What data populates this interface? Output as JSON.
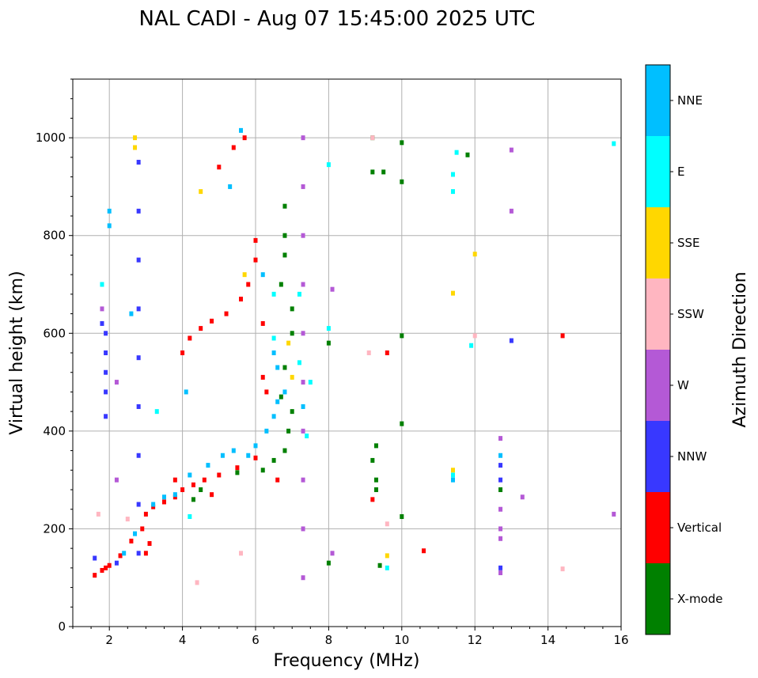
{
  "chart_data": {
    "type": "scatter",
    "title": "NAL CADI - Aug 07 15:45:00 2025 UTC",
    "xlabel": "Frequency (MHz)",
    "ylabel": "Virtual height (km)",
    "xlim": [
      1,
      16
    ],
    "ylim": [
      0,
      1120
    ],
    "xticks": [
      2,
      4,
      6,
      8,
      10,
      12,
      14,
      16
    ],
    "yticks": [
      0,
      200,
      400,
      600,
      800,
      1000
    ],
    "grid": true,
    "colorbar": {
      "title": "Azimuth Direction",
      "categories": [
        {
          "name": "X-mode",
          "color": "#008000"
        },
        {
          "name": "Vertical",
          "color": "#ff0000"
        },
        {
          "name": "NNW",
          "color": "#3838ff"
        },
        {
          "name": "W",
          "color": "#b459d6"
        },
        {
          "name": "SSW",
          "color": "#ffb6c1"
        },
        {
          "name": "SSE",
          "color": "#ffd700"
        },
        {
          "name": "E",
          "color": "#00ffff"
        },
        {
          "name": "NNE",
          "color": "#00bfff"
        }
      ]
    },
    "series": [
      {
        "name": "Vertical",
        "points": [
          [
            1.6,
            105
          ],
          [
            1.8,
            115
          ],
          [
            2.0,
            125
          ],
          [
            2.3,
            145
          ],
          [
            2.6,
            175
          ],
          [
            2.9,
            200
          ],
          [
            3.0,
            230
          ],
          [
            3.2,
            245
          ],
          [
            3.5,
            255
          ],
          [
            3.8,
            265
          ],
          [
            4.0,
            280
          ],
          [
            4.3,
            290
          ],
          [
            4.6,
            300
          ],
          [
            5.0,
            310
          ],
          [
            5.5,
            325
          ],
          [
            6.0,
            345
          ],
          [
            3.0,
            150
          ],
          [
            3.1,
            170
          ],
          [
            4.0,
            560
          ],
          [
            4.2,
            590
          ],
          [
            4.5,
            610
          ],
          [
            4.8,
            625
          ],
          [
            5.2,
            640
          ],
          [
            5.6,
            670
          ],
          [
            5.8,
            700
          ],
          [
            6.0,
            750
          ],
          [
            6.0,
            790
          ],
          [
            5.0,
            940
          ],
          [
            5.4,
            980
          ],
          [
            5.7,
            1000
          ],
          [
            6.2,
            620
          ],
          [
            6.2,
            510
          ],
          [
            6.3,
            480
          ],
          [
            6.6,
            300
          ],
          [
            4.8,
            270
          ],
          [
            3.8,
            300
          ],
          [
            1.9,
            120
          ],
          [
            9.6,
            560
          ],
          [
            10.6,
            155
          ],
          [
            14.4,
            595
          ],
          [
            9.2,
            260
          ]
        ]
      },
      {
        "name": "X-mode",
        "points": [
          [
            6.2,
            320
          ],
          [
            6.5,
            340
          ],
          [
            6.8,
            360
          ],
          [
            6.9,
            400
          ],
          [
            7.0,
            440
          ],
          [
            6.7,
            470
          ],
          [
            6.8,
            530
          ],
          [
            7.0,
            600
          ],
          [
            7.0,
            650
          ],
          [
            6.7,
            700
          ],
          [
            6.8,
            760
          ],
          [
            6.8,
            800
          ],
          [
            6.8,
            860
          ],
          [
            4.3,
            260
          ],
          [
            4.5,
            280
          ],
          [
            5.5,
            315
          ],
          [
            9.2,
            1000
          ],
          [
            9.2,
            930
          ],
          [
            9.3,
            370
          ],
          [
            9.2,
            340
          ],
          [
            9.3,
            300
          ],
          [
            9.3,
            280
          ],
          [
            9.4,
            125
          ],
          [
            10.0,
            225
          ],
          [
            10.0,
            415
          ],
          [
            10.0,
            595
          ],
          [
            10.0,
            910
          ],
          [
            10.0,
            990
          ],
          [
            11.8,
            965
          ],
          [
            8.0,
            580
          ],
          [
            8.0,
            130
          ],
          [
            9.5,
            930
          ],
          [
            12.7,
            280
          ]
        ]
      },
      {
        "name": "NNW",
        "points": [
          [
            1.9,
            430
          ],
          [
            1.9,
            480
          ],
          [
            1.9,
            520
          ],
          [
            1.9,
            560
          ],
          [
            1.9,
            600
          ],
          [
            2.8,
            150
          ],
          [
            2.8,
            250
          ],
          [
            2.8,
            350
          ],
          [
            2.8,
            450
          ],
          [
            2.8,
            550
          ],
          [
            2.8,
            650
          ],
          [
            2.8,
            750
          ],
          [
            2.8,
            850
          ],
          [
            2.8,
            950
          ],
          [
            1.6,
            140
          ],
          [
            12.7,
            120
          ],
          [
            12.7,
            300
          ],
          [
            12.7,
            330
          ],
          [
            13.0,
            585
          ],
          [
            2.2,
            130
          ],
          [
            1.8,
            620
          ]
        ]
      },
      {
        "name": "W",
        "points": [
          [
            7.3,
            100
          ],
          [
            7.3,
            200
          ],
          [
            7.3,
            300
          ],
          [
            7.3,
            400
          ],
          [
            7.3,
            500
          ],
          [
            7.3,
            600
          ],
          [
            7.3,
            700
          ],
          [
            7.3,
            800
          ],
          [
            7.3,
            900
          ],
          [
            7.3,
            1000
          ],
          [
            12.7,
            110
          ],
          [
            12.7,
            180
          ],
          [
            12.7,
            200
          ],
          [
            12.7,
            240
          ],
          [
            12.7,
            385
          ],
          [
            13.0,
            850
          ],
          [
            13.0,
            975
          ],
          [
            13.3,
            265
          ],
          [
            15.8,
            230
          ],
          [
            8.1,
            690
          ],
          [
            8.1,
            150
          ],
          [
            2.2,
            300
          ],
          [
            2.2,
            500
          ],
          [
            1.8,
            650
          ]
        ]
      },
      {
        "name": "SSW",
        "points": [
          [
            9.1,
            560
          ],
          [
            9.2,
            1000
          ],
          [
            12.0,
            595
          ],
          [
            14.4,
            118
          ],
          [
            4.4,
            90
          ],
          [
            2.5,
            220
          ],
          [
            1.7,
            230
          ],
          [
            9.6,
            210
          ],
          [
            5.6,
            150
          ]
        ]
      },
      {
        "name": "SSE",
        "points": [
          [
            2.7,
            1000
          ],
          [
            2.7,
            980
          ],
          [
            5.7,
            720
          ],
          [
            7.0,
            510
          ],
          [
            12.0,
            762
          ],
          [
            11.4,
            320
          ],
          [
            11.4,
            682
          ],
          [
            9.6,
            145
          ],
          [
            4.5,
            890
          ],
          [
            6.9,
            580
          ]
        ]
      },
      {
        "name": "E",
        "points": [
          [
            3.3,
            440
          ],
          [
            7.5,
            500
          ],
          [
            7.4,
            390
          ],
          [
            7.2,
            540
          ],
          [
            6.5,
            590
          ],
          [
            6.5,
            680
          ],
          [
            11.4,
            310
          ],
          [
            11.4,
            925
          ],
          [
            11.4,
            890
          ],
          [
            11.5,
            970
          ],
          [
            11.9,
            575
          ],
          [
            15.8,
            988
          ],
          [
            8.0,
            945
          ],
          [
            8.0,
            610
          ],
          [
            4.2,
            225
          ],
          [
            9.6,
            120
          ],
          [
            1.8,
            700
          ],
          [
            7.2,
            680
          ]
        ]
      },
      {
        "name": "NNE",
        "points": [
          [
            2.0,
            820
          ],
          [
            2.0,
            850
          ],
          [
            2.4,
            150
          ],
          [
            2.7,
            190
          ],
          [
            3.2,
            250
          ],
          [
            3.5,
            265
          ],
          [
            3.8,
            270
          ],
          [
            4.2,
            310
          ],
          [
            4.7,
            330
          ],
          [
            5.1,
            350
          ],
          [
            5.4,
            360
          ],
          [
            5.8,
            350
          ],
          [
            6.0,
            370
          ],
          [
            6.3,
            400
          ],
          [
            6.5,
            430
          ],
          [
            6.6,
            460
          ],
          [
            6.8,
            480
          ],
          [
            6.6,
            530
          ],
          [
            6.5,
            560
          ],
          [
            5.3,
            900
          ],
          [
            5.6,
            1015
          ],
          [
            4.1,
            480
          ],
          [
            6.2,
            720
          ],
          [
            11.4,
            300
          ],
          [
            12.7,
            350
          ],
          [
            2.6,
            640
          ],
          [
            7.3,
            450
          ]
        ]
      }
    ]
  }
}
